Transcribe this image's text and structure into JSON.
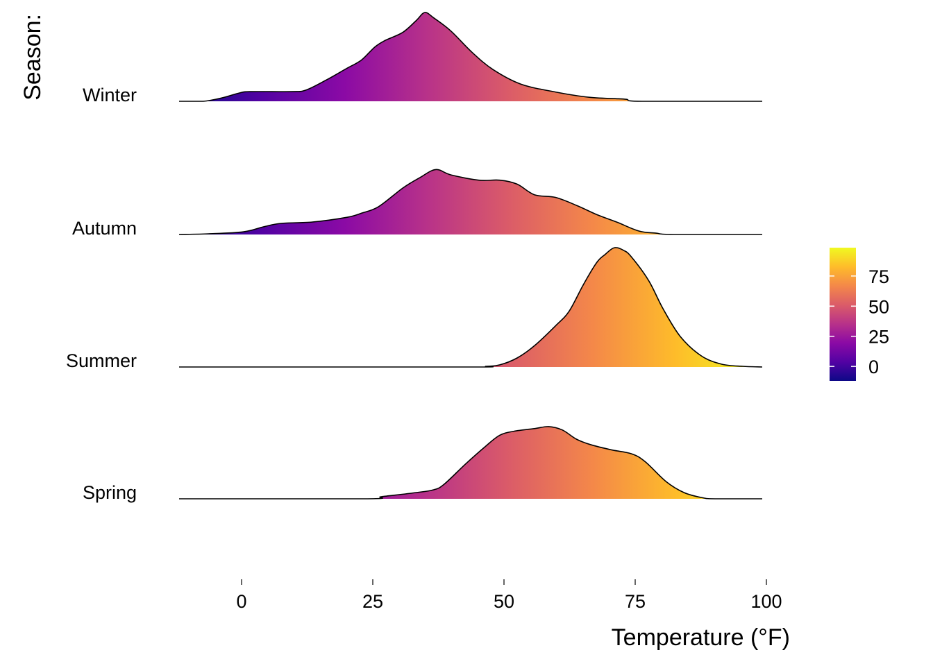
{
  "chart_data": {
    "type": "ridgeline",
    "title": "",
    "xlabel": "Temperature (°F)",
    "ylabel": "Season:",
    "xlim": [
      -11.9,
      99.2
    ],
    "x_ticks": [
      0,
      25,
      50,
      75,
      100
    ],
    "x_tick_labels": [
      "0",
      "25",
      "50",
      "75",
      "100"
    ],
    "grid": false,
    "legend": {
      "position": "right",
      "type": "colorbar",
      "palette": "plasma",
      "range": [
        -12,
        98.5
      ],
      "ticks": [
        0,
        25,
        50,
        75
      ],
      "tick_labels": [
        "0",
        "25",
        "50",
        "75"
      ],
      "colors": [
        "#0d0887",
        "#5302a3",
        "#8b0aa5",
        "#b83289",
        "#db5c68",
        "#f48849",
        "#febc2a",
        "#f0f921"
      ]
    },
    "series": [
      {
        "name": "Winter",
        "points": [
          [
            -11.9,
            0
          ],
          [
            -7.3,
            0
          ],
          [
            -3.7,
            0.026
          ],
          [
            -0.4,
            0.063
          ],
          [
            1.6,
            0.073
          ],
          [
            9.5,
            0.073
          ],
          [
            12.2,
            0.084
          ],
          [
            16.1,
            0.16
          ],
          [
            20.1,
            0.25
          ],
          [
            22.8,
            0.31
          ],
          [
            25.4,
            0.41
          ],
          [
            27.4,
            0.46
          ],
          [
            30.7,
            0.52
          ],
          [
            33.3,
            0.61
          ],
          [
            34.9,
            0.67
          ],
          [
            36.6,
            0.63
          ],
          [
            39.9,
            0.53
          ],
          [
            43.9,
            0.37
          ],
          [
            47.9,
            0.24
          ],
          [
            53.2,
            0.13
          ],
          [
            59.8,
            0.07
          ],
          [
            66.4,
            0.03
          ],
          [
            73.0,
            0.016
          ],
          [
            76.3,
            0
          ],
          [
            99.2,
            0
          ]
        ]
      },
      {
        "name": "Autumn",
        "points": [
          [
            -11.9,
            0
          ],
          [
            -6.3,
            0.005
          ],
          [
            0.3,
            0.02
          ],
          [
            4.2,
            0.058
          ],
          [
            7.5,
            0.084
          ],
          [
            13.5,
            0.094
          ],
          [
            20.1,
            0.13
          ],
          [
            22.8,
            0.16
          ],
          [
            26.1,
            0.21
          ],
          [
            30.7,
            0.35
          ],
          [
            34.0,
            0.43
          ],
          [
            37.0,
            0.49
          ],
          [
            39.9,
            0.45
          ],
          [
            45.2,
            0.41
          ],
          [
            49.2,
            0.41
          ],
          [
            52.5,
            0.38
          ],
          [
            55.8,
            0.3
          ],
          [
            59.8,
            0.28
          ],
          [
            63.8,
            0.22
          ],
          [
            67.7,
            0.15
          ],
          [
            71.7,
            0.09
          ],
          [
            75.7,
            0.026
          ],
          [
            79.0,
            0.01
          ],
          [
            82.3,
            0
          ],
          [
            99.2,
            0
          ]
        ]
      },
      {
        "name": "Summer",
        "points": [
          [
            -11.9,
            0
          ],
          [
            42.6,
            0
          ],
          [
            46.6,
            0.005
          ],
          [
            49.2,
            0.016
          ],
          [
            52.5,
            0.068
          ],
          [
            55.8,
            0.16
          ],
          [
            59.8,
            0.31
          ],
          [
            62.4,
            0.42
          ],
          [
            65.1,
            0.62
          ],
          [
            67.7,
            0.79
          ],
          [
            69.3,
            0.85
          ],
          [
            71.0,
            0.9
          ],
          [
            72.8,
            0.88
          ],
          [
            74.3,
            0.83
          ],
          [
            77.6,
            0.65
          ],
          [
            80.3,
            0.44
          ],
          [
            83.6,
            0.23
          ],
          [
            87.6,
            0.084
          ],
          [
            91.5,
            0.021
          ],
          [
            95.5,
            0.005
          ],
          [
            99.2,
            0
          ]
        ]
      },
      {
        "name": "Spring",
        "points": [
          [
            -11.9,
            0
          ],
          [
            23.4,
            0
          ],
          [
            26.7,
            0.016
          ],
          [
            33.3,
            0.047
          ],
          [
            36.6,
            0.068
          ],
          [
            38.6,
            0.11
          ],
          [
            42.6,
            0.26
          ],
          [
            46.6,
            0.4
          ],
          [
            49.2,
            0.48
          ],
          [
            51.9,
            0.51
          ],
          [
            55.8,
            0.53
          ],
          [
            58.5,
            0.545
          ],
          [
            61.1,
            0.52
          ],
          [
            63.8,
            0.45
          ],
          [
            66.4,
            0.41
          ],
          [
            70.4,
            0.37
          ],
          [
            74.3,
            0.34
          ],
          [
            76.9,
            0.28
          ],
          [
            80.9,
            0.13
          ],
          [
            84.3,
            0.047
          ],
          [
            87.6,
            0.01
          ],
          [
            90.2,
            0
          ],
          [
            99.2,
            0
          ]
        ]
      }
    ]
  }
}
